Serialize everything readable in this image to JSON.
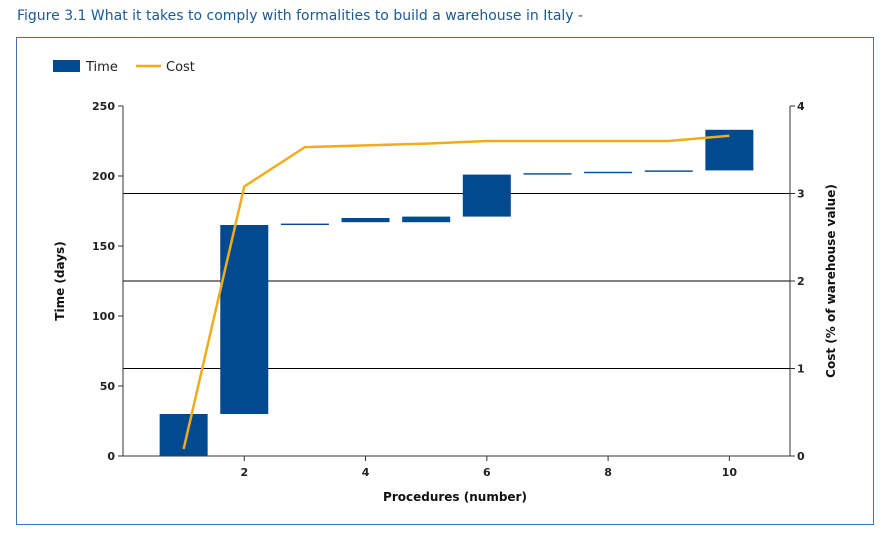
{
  "figure_title": "Figure 3.1 What it takes to comply with formalities to build a warehouse in Italy -",
  "chart_data": {
    "type": "bar",
    "subtype": "waterfall-bar-with-line",
    "xlabel": "Procedures (number)",
    "ylabel_left": "Time (days)",
    "ylabel_right": "Cost (% of warehouse value)",
    "xlim": [
      0,
      11
    ],
    "xticks": [
      2,
      4,
      6,
      8,
      10
    ],
    "ylim_left": [
      0,
      250
    ],
    "yticks_left": [
      0,
      50,
      100,
      150,
      200,
      250
    ],
    "ylim_right": [
      0,
      4
    ],
    "yticks_right": [
      0,
      1,
      2,
      3,
      4
    ],
    "grid": "horizontal lines at right-axis 1, 2, 3",
    "legend_position": "top-left",
    "colors": {
      "time": "#024a8f",
      "cost": "#f2ac1a",
      "frame": "#3c73b0",
      "title": "#1a5a96"
    },
    "series": [
      {
        "name": "Time",
        "kind": "waterfall-bar",
        "x": [
          1,
          2,
          3,
          4,
          5,
          6,
          7,
          8,
          9,
          10
        ],
        "start": [
          0,
          30,
          165,
          167,
          167,
          171,
          201,
          202,
          203,
          204
        ],
        "end": [
          30,
          165,
          166,
          170,
          171,
          201,
          202,
          203,
          204,
          233
        ]
      },
      {
        "name": "Cost",
        "kind": "line",
        "x": [
          1,
          2,
          3,
          4,
          5,
          6,
          7,
          8,
          9,
          10
        ],
        "values": [
          0.08,
          3.08,
          3.53,
          3.55,
          3.57,
          3.6,
          3.6,
          3.6,
          3.6,
          3.66
        ]
      }
    ]
  }
}
